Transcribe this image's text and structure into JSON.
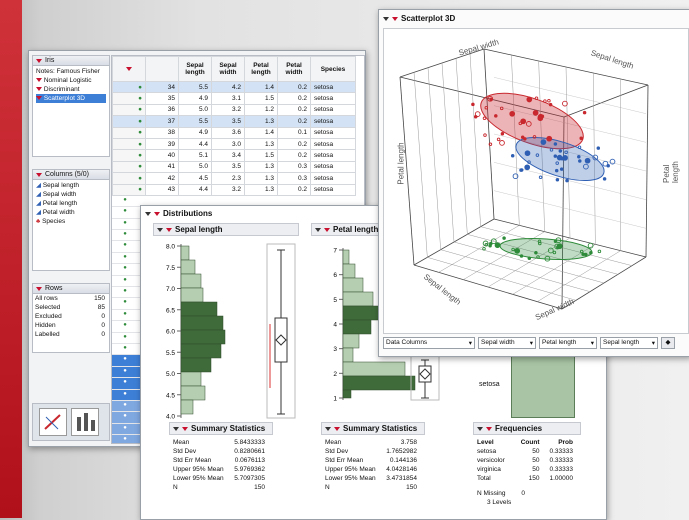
{
  "left_panel": {
    "table_name": "Iris",
    "notes": "Notes: Famous Fisher",
    "scripts": [
      "Nominal Logistic",
      "Discriminant",
      "Scatterplot 3D"
    ],
    "columns_header": "Columns (5/0)",
    "columns": [
      "Sepal length",
      "Sepal width",
      "Petal length",
      "Petal width",
      "Species"
    ],
    "rows_header": "Rows",
    "rows_stats": [
      {
        "label": "All rows",
        "value": "150"
      },
      {
        "label": "Selected",
        "value": "85"
      },
      {
        "label": "Excluded",
        "value": "0"
      },
      {
        "label": "Hidden",
        "value": "0"
      },
      {
        "label": "Labelled",
        "value": "0"
      }
    ]
  },
  "data_table": {
    "headers": [
      "Sepal length",
      "Sepal width",
      "Petal length",
      "Petal width",
      "Species"
    ],
    "rows": [
      {
        "n": "34",
        "v": [
          "5.5",
          "4.2",
          "1.4",
          "0.2",
          "setosa"
        ],
        "sel": true
      },
      {
        "n": "35",
        "v": [
          "4.9",
          "3.1",
          "1.5",
          "0.2",
          "setosa"
        ],
        "sel": false
      },
      {
        "n": "36",
        "v": [
          "5.0",
          "3.2",
          "1.2",
          "0.2",
          "setosa"
        ],
        "sel": false
      },
      {
        "n": "37",
        "v": [
          "5.5",
          "3.5",
          "1.3",
          "0.2",
          "setosa"
        ],
        "sel": true
      },
      {
        "n": "38",
        "v": [
          "4.9",
          "3.6",
          "1.4",
          "0.1",
          "setosa"
        ],
        "sel": false
      },
      {
        "n": "39",
        "v": [
          "4.4",
          "3.0",
          "1.3",
          "0.2",
          "setosa"
        ],
        "sel": false
      },
      {
        "n": "40",
        "v": [
          "5.1",
          "3.4",
          "1.5",
          "0.2",
          "setosa"
        ],
        "sel": false
      },
      {
        "n": "41",
        "v": [
          "5.0",
          "3.5",
          "1.3",
          "0.3",
          "setosa"
        ],
        "sel": false
      },
      {
        "n": "42",
        "v": [
          "4.5",
          "2.3",
          "1.3",
          "0.3",
          "setosa"
        ],
        "sel": false
      },
      {
        "n": "43",
        "v": [
          "4.4",
          "3.2",
          "1.3",
          "0.2",
          "setosa"
        ],
        "sel": false
      }
    ]
  },
  "distributions": {
    "title": "Distributions",
    "sepal": {
      "title": "Sepal length",
      "axis_ticks": [
        "8.0",
        "7.5",
        "7.0",
        "6.5",
        "6.0",
        "5.5",
        "5.0",
        "4.5",
        "4.0"
      ]
    },
    "petal": {
      "title": "Petal length",
      "axis_ticks": [
        "7",
        "6",
        "5",
        "4",
        "3",
        "2",
        "1"
      ]
    },
    "species": {
      "label": "setosa"
    },
    "summary_title": "Summary Statistics",
    "summary_sepal": [
      {
        "k": "Mean",
        "v": "5.8433333"
      },
      {
        "k": "Std Dev",
        "v": "0.8280661"
      },
      {
        "k": "Std Err Mean",
        "v": "0.0676113"
      },
      {
        "k": "Upper 95% Mean",
        "v": "5.9769362"
      },
      {
        "k": "Lower 95% Mean",
        "v": "5.7097305"
      },
      {
        "k": "N",
        "v": "150"
      }
    ],
    "summary_petal": [
      {
        "k": "Mean",
        "v": "3.758"
      },
      {
        "k": "Std Dev",
        "v": "1.7652982"
      },
      {
        "k": "Std Err Mean",
        "v": "0.144136"
      },
      {
        "k": "Upper 95% Mean",
        "v": "4.0428146"
      },
      {
        "k": "Lower 95% Mean",
        "v": "3.4731854"
      },
      {
        "k": "N",
        "v": "150"
      }
    ],
    "frequencies": {
      "title": "Frequencies",
      "headers": [
        "Level",
        "Count",
        "Prob"
      ],
      "rows": [
        {
          "level": "setosa",
          "count": "50",
          "prob": "0.33333"
        },
        {
          "level": "versicolor",
          "count": "50",
          "prob": "0.33333"
        },
        {
          "level": "virginica",
          "count": "50",
          "prob": "0.33333"
        },
        {
          "level": "Total",
          "count": "150",
          "prob": "1.00000"
        }
      ],
      "missing_label": "N Missing",
      "missing_value": "0",
      "levels": "3 Levels"
    }
  },
  "scatter3d": {
    "title": "Scatterplot 3D",
    "axis_labels": {
      "sepal_width_top": "Sepal width",
      "sepal_length_top": "Sepal length",
      "petal_length_left": "Petal length",
      "petal_length_right": "Petal length",
      "sepal_length_bottom": "Sepal length",
      "sepal_width_bottom": "Sepal width"
    },
    "data_columns_label": "Data Columns",
    "selectors": [
      "Sepal width",
      "Petal length",
      "Sepal length"
    ],
    "colors": {
      "setosa": "#2e8b3a",
      "versicolor": "#2f5fb3",
      "virginica": "#c8282e"
    }
  }
}
